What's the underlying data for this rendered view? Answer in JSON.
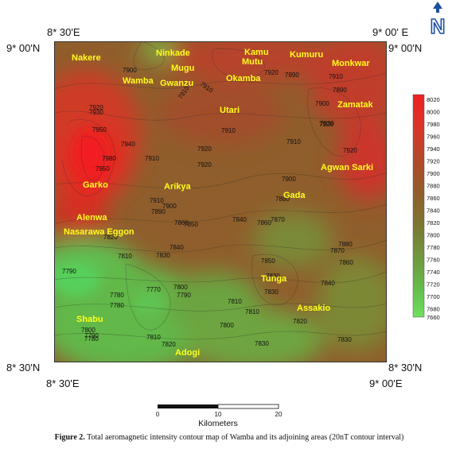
{
  "coords": {
    "top_left_lon": "8* 30'E",
    "top_right_lon": "9* 00' E",
    "left_top_lat": "9* 00'N",
    "right_top_lat": "9* 00'N",
    "left_bottom_lat": "8* 30'N",
    "right_bottom_lat": "8* 30'N",
    "bottom_left_lon": "8* 30'E",
    "bottom_right_lon": "9* 00'E"
  },
  "north_arrow": {
    "letter": "N"
  },
  "places": [
    "Nakere",
    "Ninkade",
    "Kamu",
    "Mutu",
    "Kumuru",
    "Monkwar",
    "Mugu",
    "Wamba",
    "Gwanzu",
    "Okamba",
    "Utari",
    "Zamatak",
    "Agwan Sarki",
    "Garko",
    "Arikya",
    "Gada",
    "Alenwa",
    "Nasarawa Eggon",
    "Tunga",
    "Assakio",
    "Shabu",
    "Adogi"
  ],
  "contour_labels": [
    "7900",
    "7920",
    "7910",
    "7890",
    "7910",
    "7900",
    "7890",
    "7910",
    "7910",
    "7920",
    "7950",
    "7930",
    "7980",
    "7940",
    "7920",
    "7910",
    "7920",
    "7950",
    "7920",
    "7930",
    "7910",
    "7920",
    "7910",
    "7900",
    "7880",
    "7870",
    "7880",
    "7890",
    "7900",
    "7860",
    "7850",
    "7860",
    "7840",
    "7820",
    "7810",
    "7830",
    "7840",
    "7870",
    "7860",
    "7850",
    "7830",
    "7840",
    "7830",
    "7820",
    "7810",
    "7790",
    "7780",
    "7770",
    "7800",
    "7790",
    "7780",
    "7810",
    "7810",
    "7800",
    "7790",
    "7780",
    "7820",
    "7800",
    "7830",
    "7830"
  ],
  "colorbar": {
    "ticks": [
      "8020",
      "8000",
      "7980",
      "7960",
      "7940",
      "7920",
      "7900",
      "7880",
      "7860",
      "7840",
      "7820",
      "7800",
      "7780",
      "7760",
      "7740",
      "7720",
      "7700",
      "7680",
      "7660"
    ]
  },
  "scale": {
    "title": "Kilometers",
    "ticks": [
      "0",
      "10",
      "20"
    ]
  },
  "caption": {
    "label": "Figure 2.",
    "text": "Total aeromagnetic intensity contour map of Wamba and its adjoining areas (20nT contour interval)"
  },
  "colors": {
    "high": "#e8262a",
    "mid": "#8f5e2c",
    "low": "#6ccf55",
    "label": "#ffff1a"
  }
}
